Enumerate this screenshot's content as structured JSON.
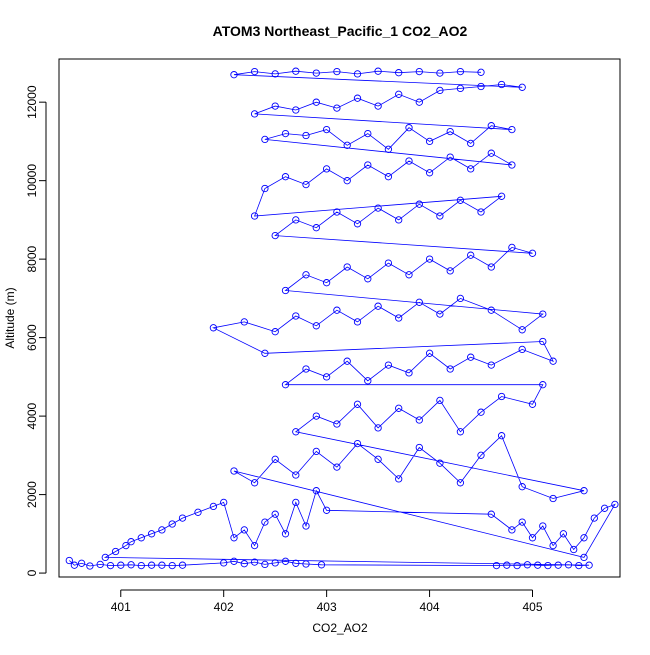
{
  "chart_data": {
    "type": "scatter",
    "title": "ATOM3 Northeast_Pacific_1 CO2_AO2",
    "xlabel": "CO2_AO2",
    "ylabel": "Altitude (m)",
    "xlim": [
      400.4,
      405.85
    ],
    "ylim": [
      -100,
      13100
    ],
    "x_ticks": [
      401,
      402,
      403,
      404,
      405
    ],
    "y_ticks": [
      0,
      2000,
      4000,
      6000,
      8000,
      10000,
      12000
    ],
    "grid": false,
    "series_color": "#0000FF",
    "marker": "open-circle",
    "line": true,
    "series": [
      {
        "points": [
          [
            400.5,
            320
          ],
          [
            400.55,
            200
          ],
          [
            400.62,
            250
          ],
          [
            400.7,
            180
          ],
          [
            400.8,
            220
          ],
          [
            400.9,
            190
          ],
          [
            401.0,
            200
          ],
          [
            401.1,
            210
          ],
          [
            401.2,
            190
          ],
          [
            401.3,
            200
          ],
          [
            401.4,
            200
          ],
          [
            401.5,
            190
          ],
          [
            401.6,
            200
          ],
          [
            402.0,
            260
          ],
          [
            402.1,
            300
          ],
          [
            402.2,
            240
          ],
          [
            402.3,
            280
          ],
          [
            402.4,
            220
          ],
          [
            402.5,
            260
          ],
          [
            402.6,
            300
          ],
          [
            402.7,
            250
          ],
          [
            402.8,
            230
          ],
          [
            402.95,
            210
          ],
          [
            404.65,
            190
          ],
          [
            404.75,
            200
          ],
          [
            404.85,
            190
          ],
          [
            404.95,
            210
          ],
          [
            405.05,
            200
          ],
          [
            405.15,
            190
          ],
          [
            405.25,
            200
          ],
          [
            405.35,
            210
          ],
          [
            405.45,
            190
          ],
          [
            405.55,
            200
          ],
          [
            400.85,
            400
          ],
          [
            400.95,
            550
          ],
          [
            401.05,
            700
          ],
          [
            401.1,
            800
          ],
          [
            401.2,
            900
          ],
          [
            401.3,
            1000
          ],
          [
            401.4,
            1100
          ],
          [
            401.5,
            1250
          ],
          [
            401.6,
            1400
          ],
          [
            401.75,
            1550
          ],
          [
            401.9,
            1700
          ],
          [
            402.0,
            1800
          ],
          [
            402.1,
            900
          ],
          [
            402.2,
            1100
          ],
          [
            402.3,
            700
          ],
          [
            402.4,
            1300
          ],
          [
            402.5,
            1500
          ],
          [
            402.6,
            1000
          ],
          [
            402.7,
            1800
          ],
          [
            402.8,
            1200
          ],
          [
            402.9,
            2100
          ],
          [
            403.0,
            1600
          ],
          [
            404.6,
            1500
          ],
          [
            404.8,
            1100
          ],
          [
            404.9,
            1300
          ],
          [
            405.0,
            900
          ],
          [
            405.1,
            1200
          ],
          [
            405.2,
            700
          ],
          [
            405.3,
            1000
          ],
          [
            405.4,
            600
          ],
          [
            405.5,
            900
          ],
          [
            405.6,
            1400
          ],
          [
            405.7,
            1650
          ],
          [
            405.8,
            1750
          ],
          [
            405.5,
            400
          ],
          [
            402.1,
            2600
          ],
          [
            402.3,
            2300
          ],
          [
            402.5,
            2900
          ],
          [
            402.7,
            2500
          ],
          [
            402.9,
            3100
          ],
          [
            403.1,
            2700
          ],
          [
            403.3,
            3300
          ],
          [
            403.5,
            2900
          ],
          [
            403.7,
            2400
          ],
          [
            403.9,
            3200
          ],
          [
            404.1,
            2800
          ],
          [
            404.3,
            2300
          ],
          [
            404.5,
            3000
          ],
          [
            404.7,
            3500
          ],
          [
            404.9,
            2200
          ],
          [
            405.2,
            1900
          ],
          [
            405.5,
            2100
          ],
          [
            402.7,
            3600
          ],
          [
            402.9,
            4000
          ],
          [
            403.1,
            3800
          ],
          [
            403.3,
            4300
          ],
          [
            403.5,
            3700
          ],
          [
            403.7,
            4200
          ],
          [
            403.9,
            3900
          ],
          [
            404.1,
            4400
          ],
          [
            404.3,
            3600
          ],
          [
            404.5,
            4100
          ],
          [
            404.7,
            4500
          ],
          [
            405.0,
            4300
          ],
          [
            405.1,
            4800
          ],
          [
            402.6,
            4800
          ],
          [
            402.8,
            5200
          ],
          [
            403.0,
            5000
          ],
          [
            403.2,
            5400
          ],
          [
            403.4,
            4900
          ],
          [
            403.6,
            5300
          ],
          [
            403.8,
            5100
          ],
          [
            404.0,
            5600
          ],
          [
            404.2,
            5200
          ],
          [
            404.4,
            5500
          ],
          [
            404.6,
            5300
          ],
          [
            404.9,
            5700
          ],
          [
            405.2,
            5400
          ],
          [
            405.1,
            5900
          ],
          [
            402.4,
            5600
          ],
          [
            401.9,
            6250
          ],
          [
            402.2,
            6400
          ],
          [
            402.5,
            6150
          ],
          [
            402.7,
            6550
          ],
          [
            402.9,
            6300
          ],
          [
            403.1,
            6700
          ],
          [
            403.3,
            6400
          ],
          [
            403.5,
            6800
          ],
          [
            403.7,
            6500
          ],
          [
            403.9,
            6900
          ],
          [
            404.1,
            6600
          ],
          [
            404.3,
            7000
          ],
          [
            404.6,
            6700
          ],
          [
            404.9,
            6200
          ],
          [
            405.1,
            6600
          ],
          [
            402.6,
            7200
          ],
          [
            402.8,
            7600
          ],
          [
            403.0,
            7400
          ],
          [
            403.2,
            7800
          ],
          [
            403.4,
            7500
          ],
          [
            403.6,
            7900
          ],
          [
            403.8,
            7600
          ],
          [
            404.0,
            8000
          ],
          [
            404.2,
            7700
          ],
          [
            404.4,
            8100
          ],
          [
            404.6,
            7800
          ],
          [
            404.8,
            8300
          ],
          [
            405.0,
            8150
          ],
          [
            402.5,
            8600
          ],
          [
            402.7,
            9000
          ],
          [
            402.9,
            8800
          ],
          [
            403.1,
            9200
          ],
          [
            403.3,
            8900
          ],
          [
            403.5,
            9300
          ],
          [
            403.7,
            9000
          ],
          [
            403.9,
            9400
          ],
          [
            404.1,
            9100
          ],
          [
            404.3,
            9500
          ],
          [
            404.5,
            9200
          ],
          [
            404.7,
            9600
          ],
          [
            402.3,
            9100
          ],
          [
            402.4,
            9800
          ],
          [
            402.6,
            10100
          ],
          [
            402.8,
            9900
          ],
          [
            403.0,
            10300
          ],
          [
            403.2,
            10000
          ],
          [
            403.4,
            10400
          ],
          [
            403.6,
            10100
          ],
          [
            403.8,
            10500
          ],
          [
            404.0,
            10200
          ],
          [
            404.2,
            10600
          ],
          [
            404.4,
            10300
          ],
          [
            404.6,
            10700
          ],
          [
            404.8,
            10400
          ],
          [
            402.4,
            11050
          ],
          [
            402.6,
            11200
          ],
          [
            402.8,
            11150
          ],
          [
            403.0,
            11300
          ],
          [
            403.2,
            10900
          ],
          [
            403.4,
            11200
          ],
          [
            403.6,
            10800
          ],
          [
            403.8,
            11350
          ],
          [
            404.0,
            11000
          ],
          [
            404.2,
            11250
          ],
          [
            404.4,
            10950
          ],
          [
            404.6,
            11400
          ],
          [
            404.8,
            11300
          ],
          [
            402.3,
            11700
          ],
          [
            402.5,
            11900
          ],
          [
            402.7,
            11800
          ],
          [
            402.9,
            12000
          ],
          [
            403.1,
            11850
          ],
          [
            403.3,
            12100
          ],
          [
            403.5,
            11900
          ],
          [
            403.7,
            12200
          ],
          [
            403.9,
            12000
          ],
          [
            404.1,
            12300
          ],
          [
            404.3,
            12350
          ],
          [
            404.5,
            12400
          ],
          [
            404.7,
            12450
          ],
          [
            404.9,
            12380
          ],
          [
            402.1,
            12700
          ],
          [
            402.3,
            12780
          ],
          [
            402.5,
            12720
          ],
          [
            402.7,
            12790
          ],
          [
            402.9,
            12740
          ],
          [
            403.1,
            12780
          ],
          [
            403.3,
            12720
          ],
          [
            403.5,
            12790
          ],
          [
            403.7,
            12750
          ],
          [
            403.9,
            12780
          ],
          [
            404.1,
            12740
          ],
          [
            404.3,
            12780
          ],
          [
            404.5,
            12760
          ]
        ]
      }
    ]
  }
}
